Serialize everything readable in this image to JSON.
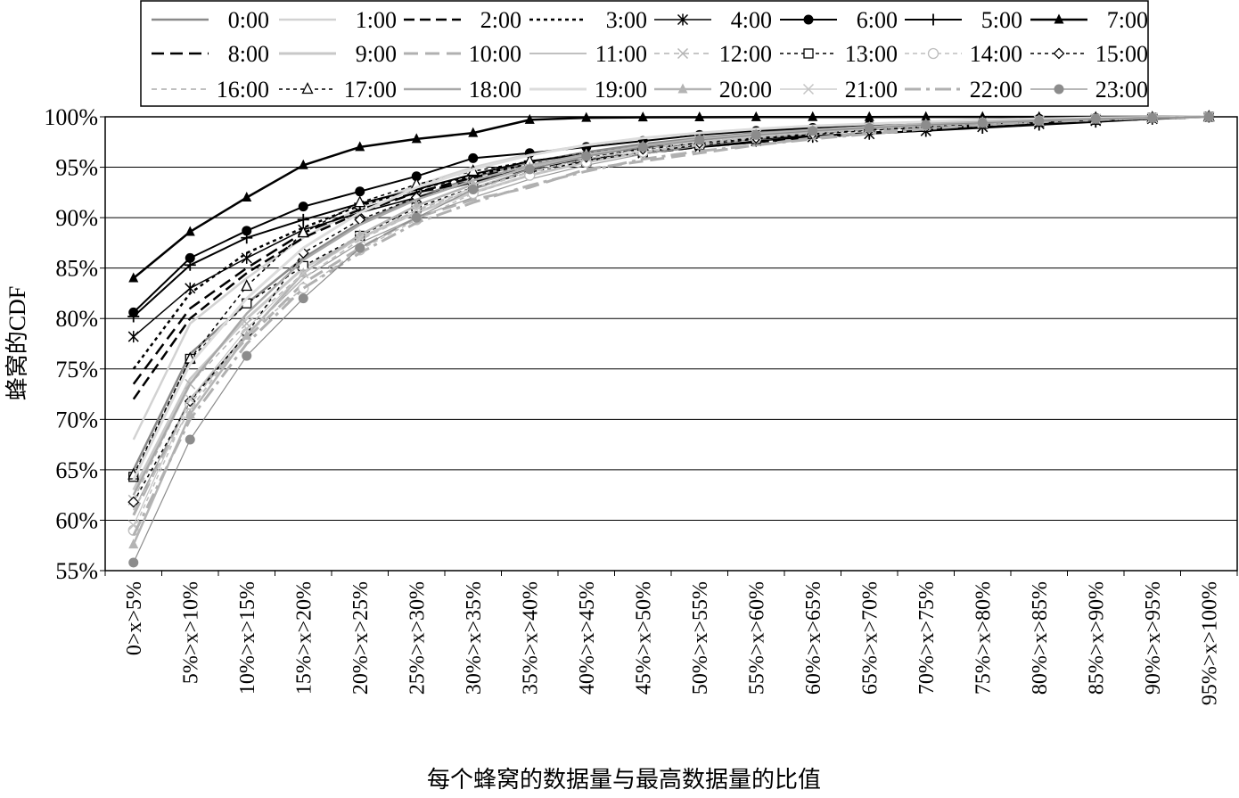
{
  "chart_data": {
    "type": "line",
    "title": "",
    "xlabel": "每个蜂窝的数据量与最高数据量的比值",
    "ylabel": "蜂窝的CDF",
    "ylim": [
      55,
      100
    ],
    "y_ticks": [
      "55%",
      "60%",
      "65%",
      "70%",
      "75%",
      "80%",
      "85%",
      "90%",
      "95%",
      "100%"
    ],
    "grid": true,
    "legend_position": "top",
    "categories": [
      "0>x>5%",
      "5%>x>10%",
      "10%>x>15%",
      "15%>x>20%",
      "20%>x>25%",
      "25%>x>30%",
      "30%>x>35%",
      "35%>x>40%",
      "40%>x>45%",
      "45%>x>50%",
      "50%>x>55%",
      "55%>x>60%",
      "60%>x>65%",
      "65%>x>70%",
      "70%>x>75%",
      "75%>x>80%",
      "80%>x>85%",
      "85%>x>90%",
      "90%>x>95%",
      "95%>x>100%"
    ],
    "series": [
      {
        "name": "0:00",
        "color": "#8a8a8a",
        "dash": "",
        "width": 2.5,
        "marker": "none",
        "values": [
          65.0,
          76.5,
          81.5,
          86.0,
          89.5,
          92.0,
          94.0,
          95.5,
          96.5,
          97.3,
          97.9,
          98.4,
          98.8,
          99.1,
          99.3,
          99.5,
          99.7,
          99.8,
          99.9,
          100
        ]
      },
      {
        "name": "1:00",
        "color": "#d2d2d2",
        "dash": "",
        "width": 2.5,
        "marker": "none",
        "values": [
          68.0,
          79.5,
          84.0,
          88.0,
          91.0,
          93.2,
          95.0,
          96.3,
          97.2,
          97.9,
          98.4,
          98.8,
          99.1,
          99.3,
          99.5,
          99.6,
          99.7,
          99.8,
          99.9,
          100
        ]
      },
      {
        "name": "2:00",
        "color": "#000000",
        "dash": "12,6",
        "width": 2.5,
        "marker": "none",
        "values": [
          72.0,
          80.0,
          84.5,
          88.0,
          90.5,
          92.5,
          94.0,
          95.0,
          95.8,
          96.4,
          97.0,
          97.5,
          97.9,
          98.4,
          98.8,
          99.1,
          99.4,
          99.6,
          99.8,
          100
        ]
      },
      {
        "name": "3:00",
        "color": "#000000",
        "dash": "4,4",
        "width": 2.5,
        "marker": "none",
        "values": [
          75.0,
          82.5,
          86.5,
          89.0,
          91.2,
          92.8,
          94.2,
          95.3,
          96.1,
          96.8,
          97.4,
          97.9,
          98.3,
          98.7,
          99.0,
          99.3,
          99.5,
          99.7,
          99.9,
          100
        ]
      },
      {
        "name": "4:00",
        "color": "#000000",
        "dash": "",
        "width": 1.5,
        "marker": "star",
        "values": [
          78.2,
          83.0,
          86.0,
          88.8,
          90.5,
          92.0,
          93.5,
          95.0,
          95.8,
          96.4,
          97.0,
          97.6,
          98.0,
          98.3,
          98.6,
          99.0,
          99.3,
          99.6,
          99.8,
          100
        ]
      },
      {
        "name": "6:00",
        "color": "#000000",
        "dash": "",
        "width": 2,
        "marker": "dot",
        "values": [
          80.6,
          86.0,
          88.7,
          91.1,
          92.6,
          94.1,
          95.9,
          96.4,
          97.0,
          97.6,
          98.2,
          98.6,
          98.9,
          99.2,
          99.4,
          99.6,
          99.8,
          99.9,
          99.95,
          100
        ]
      },
      {
        "name": "5:00",
        "color": "#000000",
        "dash": "",
        "width": 2,
        "marker": "plus",
        "values": [
          80.2,
          85.3,
          88.0,
          89.8,
          91.4,
          92.8,
          94.3,
          95.6,
          96.3,
          96.9,
          97.4,
          97.8,
          98.1,
          98.4,
          98.6,
          98.9,
          99.2,
          99.5,
          99.8,
          100
        ]
      },
      {
        "name": "7:00",
        "color": "#000000",
        "dash": "",
        "width": 2.5,
        "marker": "triangle",
        "values": [
          84.0,
          88.6,
          92.0,
          95.2,
          97.0,
          97.8,
          98.4,
          99.7,
          99.9,
          99.95,
          99.96,
          99.97,
          99.98,
          99.98,
          99.99,
          99.99,
          99.99,
          100,
          100,
          100
        ]
      },
      {
        "name": "8:00",
        "color": "#000000",
        "dash": "14,7",
        "width": 2.5,
        "marker": "none",
        "values": [
          73.5,
          81.0,
          85.0,
          88.5,
          90.8,
          92.5,
          93.6,
          94.8,
          95.7,
          96.4,
          97.0,
          97.5,
          98.0,
          98.4,
          98.8,
          99.1,
          99.4,
          99.6,
          99.8,
          100
        ]
      },
      {
        "name": "9:00",
        "color": "#c8c8c8",
        "dash": "",
        "width": 3,
        "marker": "none",
        "values": [
          63.0,
          74.0,
          80.0,
          85.0,
          88.0,
          90.5,
          92.5,
          94.2,
          95.5,
          96.5,
          97.3,
          97.9,
          98.4,
          98.8,
          99.1,
          99.4,
          99.6,
          99.8,
          99.9,
          100
        ]
      },
      {
        "name": "10:00",
        "color": "#b0b0b0",
        "dash": "16,8",
        "width": 3,
        "marker": "none",
        "values": [
          60.5,
          72.0,
          78.0,
          83.5,
          87.0,
          90.0,
          91.8,
          93.0,
          94.8,
          95.6,
          96.4,
          97.2,
          97.9,
          98.5,
          98.9,
          99.2,
          99.5,
          99.7,
          99.9,
          100
        ]
      },
      {
        "name": "11:00",
        "color": "#9a9a9a",
        "dash": "",
        "width": 1.2,
        "marker": "none",
        "values": [
          61.0,
          72.0,
          78.5,
          84.0,
          87.5,
          90.0,
          92.0,
          93.8,
          95.2,
          96.3,
          97.1,
          97.8,
          98.3,
          98.7,
          99.0,
          99.3,
          99.5,
          99.7,
          99.9,
          100
        ]
      },
      {
        "name": "12:00",
        "color": "#b4b4b4",
        "dash": "6,5",
        "width": 1.5,
        "marker": "cross",
        "values": [
          62.0,
          73.5,
          79.5,
          84.5,
          88.0,
          90.7,
          92.8,
          94.6,
          95.8,
          96.8,
          97.5,
          98.0,
          98.4,
          98.8,
          99.1,
          99.4,
          99.6,
          99.8,
          99.9,
          100
        ]
      },
      {
        "name": "13:00",
        "color": "#000000",
        "dash": "4,4",
        "width": 1.5,
        "marker": "square",
        "values": [
          64.3,
          76.0,
          81.5,
          85.2,
          88.2,
          91.0,
          93.0,
          94.5,
          95.6,
          96.5,
          97.2,
          97.8,
          98.3,
          98.7,
          99.0,
          99.3,
          99.5,
          99.7,
          99.9,
          100
        ]
      },
      {
        "name": "14:00",
        "color": "#bdbdbd",
        "dash": "5,4",
        "width": 1.5,
        "marker": "circle",
        "values": [
          59.0,
          71.5,
          78.5,
          83.0,
          86.8,
          89.8,
          92.4,
          94.2,
          95.5,
          96.5,
          97.3,
          97.9,
          98.4,
          98.8,
          99.1,
          99.4,
          99.6,
          99.8,
          99.9,
          100
        ]
      },
      {
        "name": "15:00",
        "color": "#000000",
        "dash": "4,4",
        "width": 1.5,
        "marker": "diamond",
        "values": [
          61.8,
          71.8,
          78.5,
          86.5,
          89.8,
          92.0,
          93.6,
          95.0,
          96.0,
          96.8,
          97.4,
          97.9,
          98.3,
          98.7,
          99.0,
          99.3,
          99.5,
          99.7,
          99.9,
          100
        ]
      },
      {
        "name": "16:00",
        "color": "#c0c0c0",
        "dash": "6,5",
        "width": 2,
        "marker": "none",
        "values": [
          61.0,
          71.0,
          78.5,
          84.0,
          87.8,
          90.5,
          92.8,
          94.5,
          95.8,
          96.8,
          97.5,
          98.0,
          98.4,
          98.8,
          99.1,
          99.4,
          99.6,
          99.8,
          99.9,
          100
        ]
      },
      {
        "name": "17:00",
        "color": "#000000",
        "dash": "4,4",
        "width": 1.5,
        "marker": "tri-open",
        "values": [
          64.5,
          76.0,
          83.2,
          88.5,
          91.5,
          93.3,
          94.6,
          95.6,
          96.4,
          97.1,
          97.7,
          98.2,
          98.6,
          98.9,
          99.2,
          99.4,
          99.6,
          99.8,
          99.9,
          100
        ]
      },
      {
        "name": "18:00",
        "color": "#a8a8a8",
        "dash": "",
        "width": 2.5,
        "marker": "none",
        "values": [
          62.5,
          73.5,
          80.5,
          85.8,
          89.3,
          91.8,
          93.7,
          95.2,
          96.3,
          97.1,
          97.7,
          98.2,
          98.6,
          98.9,
          99.2,
          99.4,
          99.6,
          99.8,
          99.9,
          100
        ]
      },
      {
        "name": "19:00",
        "color": "#dcdcdc",
        "dash": "",
        "width": 3,
        "marker": "none",
        "values": [
          64.0,
          75.5,
          82.0,
          87.0,
          90.5,
          93.0,
          94.8,
          96.2,
          97.2,
          97.9,
          98.4,
          98.8,
          99.1,
          99.3,
          99.5,
          99.7,
          99.8,
          99.9,
          99.95,
          100
        ]
      },
      {
        "name": "20:00",
        "color": "#b4b4b4",
        "dash": "",
        "width": 2.5,
        "marker": "triangle",
        "values": [
          57.6,
          70.5,
          78.3,
          84.5,
          88.3,
          91.2,
          93.3,
          95.0,
          96.2,
          97.1,
          97.8,
          98.3,
          98.7,
          99.0,
          99.3,
          99.5,
          99.7,
          99.8,
          99.9,
          100
        ]
      },
      {
        "name": "21:00",
        "color": "#c4c4c4",
        "dash": "",
        "width": 1.2,
        "marker": "cross",
        "values": [
          59.5,
          72.0,
          79.0,
          84.5,
          88.0,
          90.8,
          93.0,
          94.8,
          96.0,
          97.0,
          97.7,
          98.2,
          98.6,
          98.9,
          99.2,
          99.4,
          99.6,
          99.8,
          99.9,
          100
        ]
      },
      {
        "name": "22:00",
        "color": "#b0b0b0",
        "dash": "18,6,4,6",
        "width": 3,
        "marker": "none",
        "values": [
          58.5,
          70.0,
          77.5,
          83.0,
          86.5,
          89.5,
          91.5,
          93.2,
          94.6,
          95.8,
          96.6,
          97.2,
          97.8,
          98.3,
          98.8,
          99.2,
          99.5,
          99.7,
          99.9,
          100
        ]
      },
      {
        "name": "23:00",
        "color": "#8c8c8c",
        "dash": "",
        "width": 1.2,
        "marker": "dot",
        "values": [
          55.8,
          68.0,
          76.3,
          82.0,
          87.0,
          90.0,
          92.8,
          94.8,
          96.1,
          97.0,
          97.7,
          98.2,
          98.6,
          98.9,
          99.2,
          99.4,
          99.6,
          99.8,
          99.9,
          100
        ]
      }
    ]
  }
}
